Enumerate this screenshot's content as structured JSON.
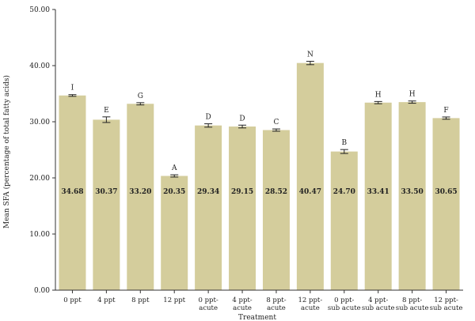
{
  "chart_data": {
    "type": "bar",
    "xlabel": "Treatment",
    "ylabel": "Mean SFA (percentage of total fatty acids)",
    "ylim": [
      0,
      50
    ],
    "yticks": [
      "0.00",
      "10.00",
      "20.00",
      "30.00",
      "40.00",
      "50.00"
    ],
    "grid": false,
    "bar_color": "#d4cd9c",
    "categories": [
      [
        "0 ppt"
      ],
      [
        "4 ppt"
      ],
      [
        "8 ppt"
      ],
      [
        "12 ppt"
      ],
      [
        "0 ppt-",
        "acute"
      ],
      [
        "4 ppt-",
        "acute"
      ],
      [
        "8 ppt-",
        "acute"
      ],
      [
        "12 ppt-",
        "acute"
      ],
      [
        "0 ppt-",
        "sub acute"
      ],
      [
        "4 ppt-",
        "sub acute"
      ],
      [
        "8 ppt-",
        "sub acute"
      ],
      [
        "12 ppt-",
        "sub acute"
      ]
    ],
    "values": [
      34.68,
      30.37,
      33.2,
      20.35,
      29.34,
      29.15,
      28.52,
      40.47,
      24.7,
      33.41,
      33.5,
      30.65
    ],
    "value_labels": [
      "34.68",
      "30.37",
      "33.20",
      "20.35",
      "29.34",
      "29.15",
      "28.52",
      "40.47",
      "24.70",
      "33.41",
      "33.50",
      "30.65"
    ],
    "errors": [
      0.15,
      0.5,
      0.2,
      0.2,
      0.3,
      0.25,
      0.2,
      0.3,
      0.35,
      0.2,
      0.2,
      0.2
    ],
    "letters": [
      "I",
      "E",
      "G",
      "A",
      "D",
      "D",
      "C",
      "N",
      "B",
      "H",
      "H",
      "F"
    ]
  }
}
